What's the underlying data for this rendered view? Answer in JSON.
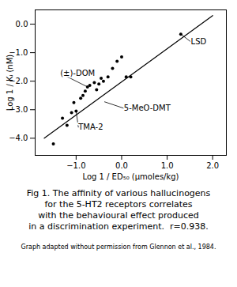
{
  "chart_data": {
    "type": "scatter",
    "x": [
      -1.5,
      -1.3,
      -1.2,
      -1.1,
      -1.05,
      -1.0,
      -0.9,
      -0.85,
      -0.8,
      -0.75,
      -0.7,
      -0.6,
      -0.55,
      -0.5,
      -0.45,
      -0.4,
      -0.3,
      -0.2,
      -0.1,
      0.0,
      0.1,
      0.2,
      1.3
    ],
    "values": [
      -4.2,
      -3.3,
      -3.55,
      -3.1,
      -2.75,
      -3.05,
      -2.6,
      -2.5,
      -2.35,
      -2.2,
      -2.15,
      -2.05,
      -2.3,
      -2.1,
      -1.9,
      -2.0,
      -1.85,
      -1.55,
      -1.3,
      -1.15,
      -1.85,
      -1.85,
      -0.35
    ],
    "color": "#000000",
    "fit_line": {
      "x": [
        -1.7,
        2.0
      ],
      "values": [
        -4.0,
        0.3
      ],
      "color": "#000000"
    },
    "xlabel": "Log 1 / ED₅₀ (μmoles/kg)",
    "ylabel": "Log 1 / Kᵢ (nM)",
    "xlim": [
      -1.9,
      2.3
    ],
    "ylim": [
      -4.6,
      0.5
    ],
    "xticks": [
      -1,
      0,
      1,
      2
    ],
    "yticks": [
      0,
      -1,
      -2,
      -3,
      -4
    ],
    "grid": false,
    "annotations": [
      {
        "text": "LSD",
        "xy": [
          1.3,
          -0.35
        ],
        "xytext": [
          1.52,
          -0.62
        ]
      },
      {
        "text": "(±)-DOM",
        "xy": [
          -0.75,
          -2.2
        ],
        "xytext": [
          -1.35,
          -1.72
        ]
      },
      {
        "text": "5-MeO-DMT",
        "xy": [
          -0.38,
          -2.72
        ],
        "xytext": [
          0.05,
          -2.95
        ]
      },
      {
        "text": "TMA-2",
        "xy": [
          -1.0,
          -3.05
        ],
        "xytext": [
          -0.95,
          -3.62
        ]
      }
    ],
    "caption": [
      "Fig 1. The affinity of various hallucinogens",
      "for the 5-HT2 receptors correlates",
      "with the behavioural effect produced",
      "in a discrimination experiment.  r=0.938."
    ],
    "footnote": "Graph adapted without permission from Glennon et al., 1984."
  }
}
